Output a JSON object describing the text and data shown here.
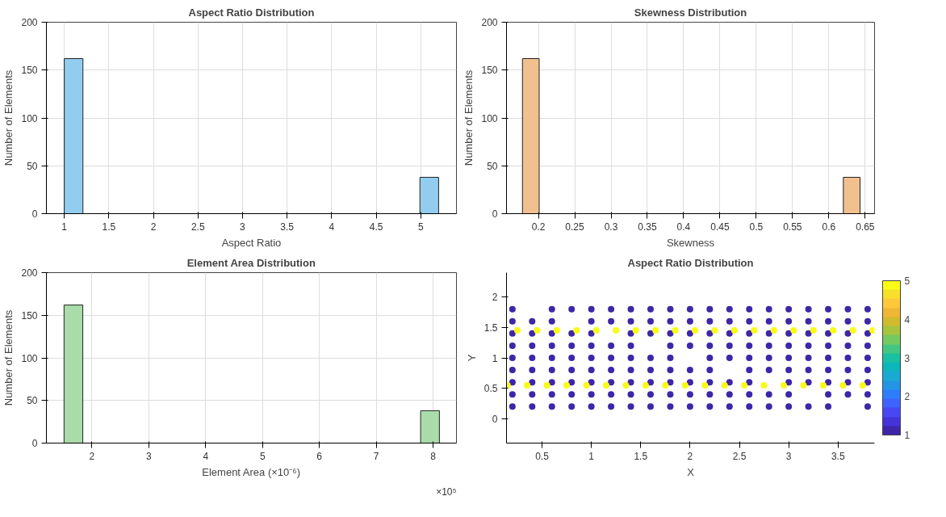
{
  "chart_data": [
    {
      "type": "histogram",
      "title": "Aspect Ratio Distribution",
      "xlabel": "Aspect Ratio",
      "ylabel": "Number of Elements",
      "bins": [
        1,
        1.21,
        4.99,
        5.2
      ],
      "values": [
        162,
        0,
        38
      ],
      "color": "#92cdef",
      "xlim": [
        0.8,
        5.4
      ],
      "xticks": [
        1,
        1.5,
        2,
        2.5,
        3,
        3.5,
        4,
        4.5,
        5
      ],
      "ylim": [
        0,
        200
      ],
      "yticks": [
        0,
        50,
        100,
        150,
        200
      ],
      "grid": true
    },
    {
      "type": "histogram",
      "title": "Skewness Distribution",
      "xlabel": "Skewness",
      "ylabel": "Number of Elements",
      "bins": [
        0.178,
        0.201,
        0.62,
        0.643
      ],
      "values": [
        162,
        0,
        38
      ],
      "color": "#f1c08f",
      "xlim": [
        0.156,
        0.663
      ],
      "xticks": [
        0.2,
        0.25,
        0.3,
        0.35,
        0.4,
        0.45,
        0.5,
        0.55,
        0.6,
        0.65
      ],
      "ylim": [
        0,
        200
      ],
      "yticks": [
        0,
        50,
        100,
        150,
        200
      ],
      "grid": true
    },
    {
      "type": "histogram",
      "title": "Element Area Distribution",
      "xlabel": "Element Area (×10⁻⁶)",
      "ylabel": "Number of Elements",
      "annotations": [
        "×10⁵"
      ],
      "bins": [
        1.51,
        1.84,
        7.78,
        8.11
      ],
      "values": [
        162,
        0,
        38
      ],
      "color": "#a9dca9",
      "xlim": [
        1.2,
        8.41
      ],
      "xticks": [
        2,
        3,
        4,
        5,
        6,
        7,
        8
      ],
      "ylim": [
        0,
        200
      ],
      "yticks": [
        0,
        50,
        100,
        150,
        200
      ],
      "grid": true
    },
    {
      "type": "scatter",
      "title": "Aspect Ratio Distribution",
      "xlabel": "X",
      "ylabel": "Y",
      "marker": "circle",
      "grid": false,
      "xlim": [
        0.14,
        3.87
      ],
      "xticks": [
        0.5,
        1,
        1.5,
        2,
        2.5,
        3,
        3.5
      ],
      "ylim": [
        -0.4,
        2.4
      ],
      "yticks": [
        0,
        0.5,
        1,
        1.5,
        2
      ],
      "clim": [
        1,
        5
      ],
      "cticks": [
        1,
        2,
        3,
        4,
        5
      ],
      "series": [
        {
          "x": [
            0.2,
            0.6,
            0.8,
            1.0,
            1.2,
            1.4,
            1.6,
            1.8,
            2.0,
            2.2,
            2.4,
            2.6,
            2.8,
            3.0,
            3.2,
            3.4,
            3.6,
            3.8
          ],
          "values": [
            1.8,
            1.8,
            1.8,
            1.8,
            1.8,
            1.8,
            1.8,
            1.8,
            1.8,
            1.8,
            1.8,
            1.8,
            1.8,
            1.8,
            1.8,
            1.8,
            1.8,
            1.8
          ],
          "cvalues": [
            1,
            1,
            1,
            1,
            1,
            1,
            1,
            1,
            1,
            1,
            1,
            1,
            1,
            1,
            1,
            1,
            1,
            1
          ]
        },
        {
          "x": [
            0.2,
            0.4,
            0.6,
            1.0,
            1.2,
            1.4,
            1.6,
            1.8,
            2.0,
            2.2,
            2.4,
            2.6,
            2.8,
            3.0,
            3.2,
            3.4,
            3.6,
            3.8
          ],
          "values": [
            1.6,
            1.6,
            1.6,
            1.6,
            1.6,
            1.6,
            1.6,
            1.6,
            1.6,
            1.6,
            1.6,
            1.6,
            1.6,
            1.6,
            1.6,
            1.6,
            1.6,
            1.6
          ],
          "cvalues": [
            1,
            1,
            1,
            1,
            1,
            1,
            1,
            1,
            1,
            1,
            1,
            1,
            1,
            1,
            1,
            1,
            1,
            1
          ]
        },
        {
          "x": [
            0.2,
            0.4,
            0.6,
            0.8,
            1.0,
            1.4,
            1.6,
            1.8,
            2.0,
            2.2,
            2.4,
            2.6,
            2.8,
            3.0,
            3.2,
            3.4,
            3.6,
            3.8
          ],
          "values": [
            1.4,
            1.4,
            1.4,
            1.4,
            1.4,
            1.4,
            1.4,
            1.4,
            1.4,
            1.4,
            1.4,
            1.4,
            1.4,
            1.4,
            1.4,
            1.4,
            1.4,
            1.4
          ],
          "cvalues": [
            1,
            1,
            1,
            1,
            1,
            1,
            1,
            1,
            1,
            1,
            1,
            1,
            1,
            1,
            1,
            1,
            1,
            1
          ]
        },
        {
          "x": [
            0.2,
            0.4,
            0.6,
            0.8,
            1.0,
            1.2,
            1.4,
            1.8,
            2.0,
            2.2,
            2.4,
            2.6,
            2.8,
            3.0,
            3.2,
            3.4,
            3.6,
            3.8
          ],
          "values": [
            1.2,
            1.2,
            1.2,
            1.2,
            1.2,
            1.2,
            1.2,
            1.2,
            1.2,
            1.2,
            1.2,
            1.2,
            1.2,
            1.2,
            1.2,
            1.2,
            1.2,
            1.2
          ],
          "cvalues": [
            1,
            1,
            1,
            1,
            1,
            1,
            1,
            1,
            1,
            1,
            1,
            1,
            1,
            1,
            1,
            1,
            1,
            1
          ]
        },
        {
          "x": [
            0.2,
            0.4,
            0.6,
            0.8,
            1.0,
            1.2,
            1.4,
            1.6,
            1.8,
            2.2,
            2.4,
            2.6,
            2.8,
            3.0,
            3.2,
            3.4,
            3.6,
            3.8
          ],
          "values": [
            1.0,
            1.0,
            1.0,
            1.0,
            1.0,
            1.0,
            1.0,
            1.0,
            1.0,
            1.0,
            1.0,
            1.0,
            1.0,
            1.0,
            1.0,
            1.0,
            1.0,
            1.0
          ],
          "cvalues": [
            1,
            1,
            1,
            1,
            1,
            1,
            1,
            1,
            1,
            1,
            1,
            1,
            1,
            1,
            1,
            1,
            1,
            1
          ]
        },
        {
          "x": [
            0.2,
            0.4,
            0.6,
            0.8,
            1.0,
            1.2,
            1.4,
            1.6,
            1.8,
            2.0,
            2.2,
            2.6,
            2.8,
            3.0,
            3.2,
            3.4,
            3.6,
            3.8
          ],
          "values": [
            0.8,
            0.8,
            0.8,
            0.8,
            0.8,
            0.8,
            0.8,
            0.8,
            0.8,
            0.8,
            0.8,
            0.8,
            0.8,
            0.8,
            0.8,
            0.8,
            0.8,
            0.8
          ],
          "cvalues": [
            1,
            1,
            1,
            1,
            1,
            1,
            1,
            1,
            1,
            1,
            1,
            1,
            1,
            1,
            1,
            1,
            1,
            1
          ]
        },
        {
          "x": [
            0.2,
            0.4,
            0.6,
            0.8,
            1.0,
            1.2,
            1.4,
            1.6,
            1.8,
            2.0,
            2.2,
            2.4,
            2.6,
            3.0,
            3.2,
            3.4,
            3.6,
            3.8
          ],
          "values": [
            0.6,
            0.6,
            0.6,
            0.6,
            0.6,
            0.6,
            0.6,
            0.6,
            0.6,
            0.6,
            0.6,
            0.6,
            0.6,
            0.6,
            0.6,
            0.6,
            0.6,
            0.6
          ],
          "cvalues": [
            1,
            1,
            1,
            1,
            1,
            1,
            1,
            1,
            1,
            1,
            1,
            1,
            1,
            1,
            1,
            1,
            1,
            1
          ]
        },
        {
          "x": [
            0.2,
            0.4,
            0.6,
            0.8,
            1.0,
            1.2,
            1.4,
            1.6,
            1.8,
            2.0,
            2.2,
            2.4,
            2.6,
            2.8,
            3.0,
            3.4,
            3.6,
            3.8
          ],
          "values": [
            0.4,
            0.4,
            0.4,
            0.4,
            0.4,
            0.4,
            0.4,
            0.4,
            0.4,
            0.4,
            0.4,
            0.4,
            0.4,
            0.4,
            0.4,
            0.4,
            0.4,
            0.4
          ],
          "cvalues": [
            1,
            1,
            1,
            1,
            1,
            1,
            1,
            1,
            1,
            1,
            1,
            1,
            1,
            1,
            1,
            1,
            1,
            1
          ]
        },
        {
          "x": [
            0.2,
            0.4,
            0.6,
            0.8,
            1.0,
            1.2,
            1.4,
            1.6,
            1.8,
            2.0,
            2.2,
            2.4,
            2.6,
            2.8,
            3.0,
            3.2,
            3.4,
            3.8
          ],
          "values": [
            0.2,
            0.2,
            0.2,
            0.2,
            0.2,
            0.2,
            0.2,
            0.2,
            0.2,
            0.2,
            0.2,
            0.2,
            0.2,
            0.2,
            0.2,
            0.2,
            0.2,
            0.2
          ],
          "cvalues": [
            1,
            1,
            1,
            1,
            1,
            1,
            1,
            1,
            1,
            1,
            1,
            1,
            1,
            1,
            1,
            1,
            1,
            1
          ]
        },
        {
          "x": [
            0.25,
            0.45,
            0.65,
            0.85,
            1.05,
            1.25,
            1.45,
            1.65,
            1.85,
            2.05,
            2.25,
            2.45,
            2.65,
            2.85,
            3.05,
            3.25,
            3.45,
            3.65,
            3.85
          ],
          "values": [
            1.45,
            1.45,
            1.45,
            1.45,
            1.45,
            1.45,
            1.45,
            1.45,
            1.45,
            1.45,
            1.45,
            1.45,
            1.45,
            1.45,
            1.45,
            1.45,
            1.45,
            1.45,
            1.45
          ],
          "cvalues": [
            5,
            5,
            5,
            5,
            5,
            5,
            5,
            5,
            5,
            5,
            5,
            5,
            5,
            5,
            5,
            5,
            5,
            5,
            5
          ]
        },
        {
          "x": [
            0.15,
            0.35,
            0.55,
            0.75,
            0.95,
            1.15,
            1.35,
            1.55,
            1.75,
            1.95,
            2.15,
            2.35,
            2.55,
            2.75,
            2.95,
            3.15,
            3.35,
            3.55,
            3.75
          ],
          "values": [
            0.55,
            0.55,
            0.55,
            0.55,
            0.55,
            0.55,
            0.55,
            0.55,
            0.55,
            0.55,
            0.55,
            0.55,
            0.55,
            0.55,
            0.55,
            0.55,
            0.55,
            0.55,
            0.55
          ],
          "cvalues": [
            5,
            5,
            5,
            5,
            5,
            5,
            5,
            5,
            5,
            5,
            5,
            5,
            5,
            5,
            5,
            5,
            5,
            5,
            5
          ]
        }
      ]
    }
  ]
}
